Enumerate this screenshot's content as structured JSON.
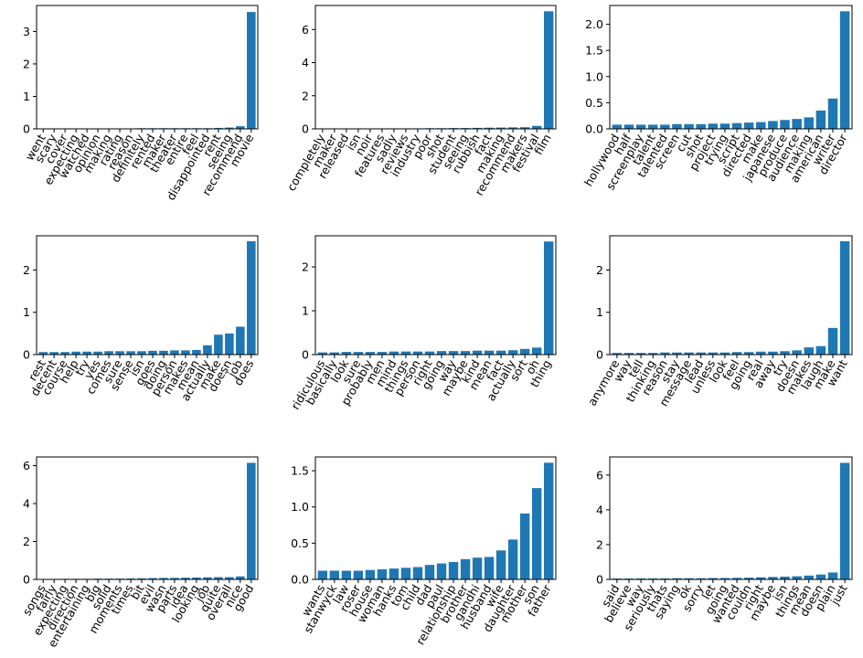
{
  "chart_data": [
    {
      "type": "bar",
      "color": "#1f77b4",
      "categories": [
        "went",
        "scary",
        "cover",
        "expecting",
        "watched",
        "opinion",
        "making",
        "rating",
        "reason",
        "definitely",
        "rented",
        "maker",
        "theater",
        "entire",
        "feel",
        "disappointed",
        "rent",
        "seeing",
        "recommend",
        "movie"
      ],
      "values": [
        0.01,
        0.01,
        0.01,
        0.01,
        0.01,
        0.01,
        0.01,
        0.01,
        0.01,
        0.02,
        0.02,
        0.02,
        0.02,
        0.02,
        0.02,
        0.02,
        0.03,
        0.04,
        0.08,
        3.6
      ],
      "ylim": [
        0,
        3.8
      ],
      "yticks": [
        0,
        1,
        2,
        3
      ]
    },
    {
      "type": "bar",
      "color": "#1f77b4",
      "categories": [
        "completely",
        "maker",
        "released",
        "isn",
        "noir",
        "features",
        "sadly",
        "reviews",
        "industry",
        "poor",
        "shot",
        "student",
        "seeing",
        "rubbish",
        "fact",
        "making",
        "recommend",
        "makers",
        "festival",
        "film"
      ],
      "values": [
        0.02,
        0.02,
        0.02,
        0.02,
        0.02,
        0.03,
        0.03,
        0.03,
        0.03,
        0.04,
        0.04,
        0.05,
        0.05,
        0.06,
        0.07,
        0.08,
        0.09,
        0.1,
        0.18,
        7.1
      ],
      "ylim": [
        0,
        7.45
      ],
      "yticks": [
        0,
        2,
        4,
        6
      ]
    },
    {
      "type": "bar",
      "color": "#1f77b4",
      "categories": [
        "hollywood",
        "half",
        "screenplay",
        "talent",
        "talented",
        "screen",
        "cut",
        "shot",
        "project",
        "trying",
        "script",
        "directed",
        "make",
        "japanese",
        "produce",
        "audience",
        "making",
        "american",
        "writer",
        "director"
      ],
      "values": [
        0.08,
        0.08,
        0.08,
        0.08,
        0.08,
        0.09,
        0.09,
        0.09,
        0.1,
        0.1,
        0.11,
        0.12,
        0.13,
        0.15,
        0.17,
        0.19,
        0.22,
        0.35,
        0.58,
        2.25
      ],
      "ylim": [
        0,
        2.36
      ],
      "yticks": [
        {
          "value": 0,
          "label": "0.0"
        },
        0.5,
        {
          "value": 1,
          "label": "1.0"
        },
        1.5,
        {
          "value": 2,
          "label": "2.0"
        }
      ]
    },
    {
      "type": "bar",
      "color": "#1f77b4",
      "categories": [
        "rest",
        "decent",
        "course",
        "help",
        "try",
        "yes",
        "comes",
        "sure",
        "sense",
        "isn",
        "goes",
        "doing",
        "person",
        "makes",
        "mean",
        "actually",
        "make",
        "doesn",
        "job",
        "does"
      ],
      "values": [
        0.06,
        0.06,
        0.06,
        0.07,
        0.07,
        0.07,
        0.08,
        0.08,
        0.08,
        0.08,
        0.09,
        0.09,
        0.1,
        0.1,
        0.11,
        0.22,
        0.47,
        0.5,
        0.66,
        2.68
      ],
      "ylim": [
        0,
        2.81
      ],
      "yticks": [
        0,
        1,
        2
      ]
    },
    {
      "type": "bar",
      "color": "#1f77b4",
      "categories": [
        "ridiculous",
        "basically",
        "look",
        "sure",
        "probably",
        "men",
        "mind",
        "things",
        "person",
        "right",
        "going",
        "way",
        "maybe",
        "kind",
        "mean",
        "fact",
        "actually",
        "sort",
        "oh",
        "thing"
      ],
      "values": [
        0.05,
        0.05,
        0.06,
        0.06,
        0.06,
        0.06,
        0.07,
        0.07,
        0.07,
        0.07,
        0.08,
        0.08,
        0.08,
        0.09,
        0.09,
        0.09,
        0.1,
        0.13,
        0.16,
        2.58
      ],
      "ylim": [
        0,
        2.71
      ],
      "yticks": [
        0,
        1,
        2
      ]
    },
    {
      "type": "bar",
      "color": "#1f77b4",
      "categories": [
        "anymore",
        "way",
        "tell",
        "thinking",
        "reason",
        "stay",
        "message",
        "lead",
        "unless",
        "look",
        "feel",
        "going",
        "real",
        "away",
        "try",
        "doesn",
        "makes",
        "laugh",
        "make",
        "want"
      ],
      "values": [
        0.04,
        0.04,
        0.04,
        0.04,
        0.05,
        0.05,
        0.05,
        0.05,
        0.05,
        0.05,
        0.06,
        0.06,
        0.07,
        0.07,
        0.08,
        0.1,
        0.17,
        0.2,
        0.63,
        2.68
      ],
      "ylim": [
        0,
        2.81
      ],
      "yticks": [
        0,
        1,
        2
      ]
    },
    {
      "type": "bar",
      "color": "#1f77b4",
      "categories": [
        "songs",
        "fairly",
        "expecting",
        "direction",
        "entertaining",
        "big",
        "solid",
        "moments",
        "times",
        "bit",
        "evil",
        "wasn",
        "parts",
        "idea",
        "looking",
        "job",
        "quite",
        "overall",
        "nice",
        "good"
      ],
      "values": [
        0.02,
        0.02,
        0.03,
        0.03,
        0.03,
        0.04,
        0.04,
        0.04,
        0.05,
        0.06,
        0.07,
        0.08,
        0.08,
        0.09,
        0.1,
        0.11,
        0.12,
        0.12,
        0.16,
        6.15
      ],
      "ylim": [
        0,
        6.46
      ],
      "yticks": [
        0,
        2,
        4,
        6
      ]
    },
    {
      "type": "bar",
      "color": "#1f77b4",
      "categories": [
        "wants",
        "stanwyck",
        "law",
        "roser",
        "house",
        "woman",
        "hanks",
        "tom",
        "child",
        "dad",
        "paul",
        "relationship",
        "brother",
        "gandhi",
        "husband",
        "wife",
        "daughter",
        "mother",
        "son",
        "father"
      ],
      "values": [
        0.12,
        0.12,
        0.12,
        0.12,
        0.13,
        0.14,
        0.15,
        0.16,
        0.17,
        0.2,
        0.22,
        0.24,
        0.28,
        0.3,
        0.31,
        0.4,
        0.55,
        0.91,
        1.26,
        1.61
      ],
      "ylim": [
        0,
        1.69
      ],
      "yticks": [
        {
          "value": 0,
          "label": "0.0"
        },
        0.5,
        {
          "value": 1,
          "label": "1.0"
        },
        1.5
      ]
    },
    {
      "type": "bar",
      "color": "#1f77b4",
      "categories": [
        "said",
        "believe",
        "way",
        "seriously",
        "thats",
        "saying",
        "ok",
        "sorry",
        "let",
        "going",
        "wanted",
        "couldn",
        "right",
        "maybe",
        "isn",
        "things",
        "mean",
        "doesn",
        "plain",
        "just"
      ],
      "values": [
        0.05,
        0.05,
        0.06,
        0.06,
        0.06,
        0.07,
        0.07,
        0.07,
        0.08,
        0.08,
        0.09,
        0.1,
        0.12,
        0.14,
        0.16,
        0.18,
        0.22,
        0.28,
        0.4,
        6.7
      ],
      "ylim": [
        0,
        7.04
      ],
      "yticks": [
        0,
        2,
        4,
        6
      ]
    }
  ]
}
